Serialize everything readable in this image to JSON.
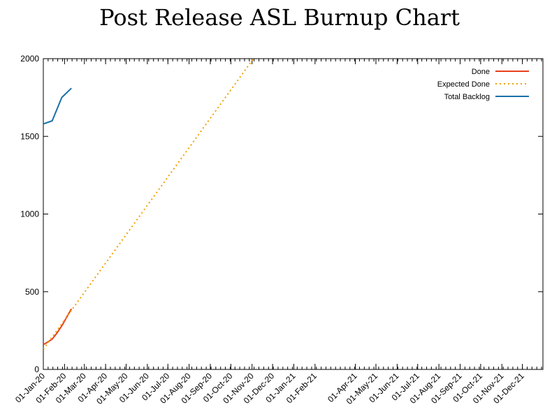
{
  "chart_data": {
    "type": "line",
    "title": "Post Release ASL Burnup Chart",
    "xlabel": "",
    "ylabel": "",
    "ylim": [
      0,
      2000
    ],
    "yticks": [
      0,
      500,
      1000,
      1500,
      2000
    ],
    "xlim": [
      "2020-01-01",
      "2021-12-31"
    ],
    "xtick_dates": [
      "2020-01-01",
      "2020-02-01",
      "2020-03-01",
      "2020-04-01",
      "2020-05-01",
      "2020-06-01",
      "2020-07-01",
      "2020-08-01",
      "2020-09-01",
      "2020-10-01",
      "2020-11-01",
      "2020-12-01",
      "2021-01-01",
      "2021-02-01",
      "2021-04-01",
      "2021-05-01",
      "2021-06-01",
      "2021-07-01",
      "2021-08-01",
      "2021-09-01",
      "2021-10-01",
      "2021-11-01",
      "2021-12-01"
    ],
    "xtick_labels": [
      "01-Jan-20",
      "01-Feb-20",
      "01-Mar-20",
      "01-Apr-20",
      "01-May-20",
      "01-Jun-20",
      "01-Jul-20",
      "01-Aug-20",
      "01-Sep-20",
      "01-Oct-20",
      "01-Nov-20",
      "01-Dec-20",
      "01-Jan-21",
      "01-Feb-21",
      "01-Apr-21",
      "01-May-21",
      "01-Jun-21",
      "01-Jul-21",
      "01-Aug-21",
      "01-Sep-21",
      "01-Oct-21",
      "01-Nov-21",
      "01-Dec-21"
    ],
    "grid": false,
    "legend_position": "top-right",
    "series": [
      {
        "name": "Done",
        "color": "#e8401c",
        "style": "solid",
        "x": [
          "2020-01-01",
          "2020-01-07",
          "2020-01-14",
          "2020-01-21",
          "2020-01-28",
          "2020-02-04",
          "2020-02-11"
        ],
        "y": [
          160,
          175,
          195,
          235,
          280,
          335,
          390
        ]
      },
      {
        "name": "Expected Done",
        "color": "#f0a000",
        "style": "dotted",
        "x": [
          "2020-01-01",
          "2020-11-03"
        ],
        "y": [
          130,
          2000
        ]
      },
      {
        "name": "Total Backlog",
        "color": "#1a6fa8",
        "style": "solid",
        "x": [
          "2020-01-01",
          "2020-01-14",
          "2020-01-28",
          "2020-02-11"
        ],
        "y": [
          1580,
          1600,
          1750,
          1810
        ]
      }
    ]
  }
}
